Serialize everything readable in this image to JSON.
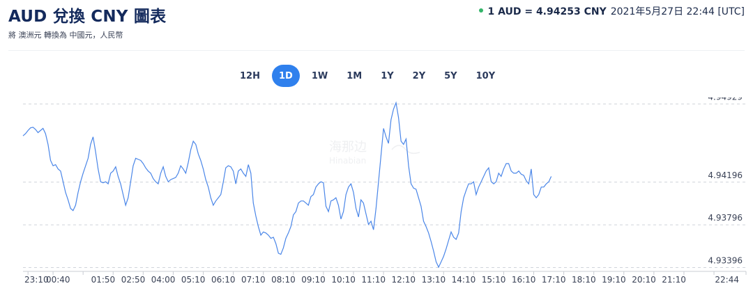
{
  "header": {
    "title": "AUD 兌換 CNY 圖表",
    "subtitle": "將 澳洲元 轉換為 中國元，人民幣",
    "rate_value": "1 AUD = 4.94253 CNY",
    "rate_time": "2021年5月27日 22:44 [UTC]",
    "status_color": "#34b46a"
  },
  "periods": [
    {
      "label": "12H",
      "active": false
    },
    {
      "label": "1D",
      "active": true
    },
    {
      "label": "1W",
      "active": false
    },
    {
      "label": "1M",
      "active": false
    },
    {
      "label": "1Y",
      "active": false
    },
    {
      "label": "2Y",
      "active": false
    },
    {
      "label": "5Y",
      "active": false
    },
    {
      "label": "10Y",
      "active": false
    }
  ],
  "chart_data": {
    "type": "line",
    "series_color": "#4a86e8",
    "accent_color": "#2f80ed",
    "grid": true,
    "y_grid_lines": [
      4.94929,
      4.94196,
      4.93796,
      4.93396
    ],
    "y_tick_labels": [
      "4.94929",
      "4.94196",
      "4.93796",
      "4.93396"
    ],
    "ylim": [
      4.9336,
      4.9499
    ],
    "xlim": [
      0,
      1444
    ],
    "x_tick_positions": [
      10,
      60,
      120,
      180,
      240,
      300,
      360,
      420,
      480,
      540,
      600,
      660,
      720,
      780,
      840,
      900,
      960,
      1020,
      1080,
      1140,
      1200,
      1260,
      1320,
      1380,
      1444
    ],
    "x_tick_labels": [
      "23:10",
      "00:40",
      "01:50",
      "02:50",
      "04:00",
      "05:10",
      "06:10",
      "07:10",
      "08:10",
      "09:10",
      "10:10",
      "11:10",
      "12:10",
      "13:10",
      "14:10",
      "15:10",
      "16:10",
      "17:10",
      "18:10",
      "19:10",
      "20:10",
      "21:10",
      "22:44"
    ],
    "x_tick_label_positions": [
      10,
      70,
      160,
      220,
      280,
      340,
      400,
      460,
      520,
      580,
      640,
      700,
      760,
      820,
      880,
      940,
      1000,
      1060,
      1120,
      1180,
      1240,
      1300,
      1444
    ],
    "series": [
      {
        "points": [
          [
            0,
            4.9463
          ],
          [
            5,
            4.9465
          ],
          [
            10,
            4.9468
          ],
          [
            15,
            4.94705
          ],
          [
            20,
            4.9471
          ],
          [
            25,
            4.9469
          ],
          [
            30,
            4.9466
          ],
          [
            35,
            4.9468
          ],
          [
            40,
            4.947
          ],
          [
            45,
            4.9465
          ],
          [
            50,
            4.9455
          ],
          [
            55,
            4.944
          ],
          [
            60,
            4.9435
          ],
          [
            65,
            4.9436
          ],
          [
            70,
            4.9432
          ],
          [
            75,
            4.943
          ],
          [
            80,
            4.942
          ],
          [
            85,
            4.941
          ],
          [
            90,
            4.9403
          ],
          [
            95,
            4.9395
          ],
          [
            100,
            4.9393
          ],
          [
            105,
            4.9398
          ],
          [
            110,
            4.941
          ],
          [
            115,
            4.942
          ],
          [
            120,
            4.9428
          ],
          [
            125,
            4.9435
          ],
          [
            130,
            4.9442
          ],
          [
            135,
            4.9455
          ],
          [
            140,
            4.9462
          ],
          [
            145,
            4.9448
          ],
          [
            150,
            4.9432
          ],
          [
            155,
            4.942
          ],
          [
            160,
            4.9419
          ],
          [
            165,
            4.942
          ],
          [
            170,
            4.9418
          ],
          [
            175,
            4.9428
          ],
          [
            180,
            4.943
          ],
          [
            185,
            4.9434
          ],
          [
            190,
            4.9425
          ],
          [
            195,
            4.9418
          ],
          [
            200,
            4.9408
          ],
          [
            205,
            4.9398
          ],
          [
            210,
            4.9405
          ],
          [
            215,
            4.942
          ],
          [
            220,
            4.9435
          ],
          [
            225,
            4.9442
          ],
          [
            230,
            4.9441
          ],
          [
            235,
            4.944
          ],
          [
            240,
            4.9437
          ],
          [
            245,
            4.9433
          ],
          [
            250,
            4.943
          ],
          [
            255,
            4.9428
          ],
          [
            260,
            4.9423
          ],
          [
            265,
            4.942
          ],
          [
            270,
            4.9418
          ],
          [
            275,
            4.9428
          ],
          [
            280,
            4.9434
          ],
          [
            285,
            4.9425
          ],
          [
            290,
            4.942
          ],
          [
            295,
            4.9422
          ],
          [
            300,
            4.9423
          ],
          [
            305,
            4.9424
          ],
          [
            310,
            4.9428
          ],
          [
            315,
            4.9435
          ],
          [
            320,
            4.9432
          ],
          [
            325,
            4.9428
          ],
          [
            330,
            4.9438
          ],
          [
            335,
            4.945
          ],
          [
            340,
            4.9458
          ],
          [
            345,
            4.9455
          ],
          [
            350,
            4.9446
          ],
          [
            355,
            4.944
          ],
          [
            360,
            4.9432
          ],
          [
            365,
            4.9422
          ],
          [
            370,
            4.9415
          ],
          [
            375,
            4.9405
          ],
          [
            380,
            4.9398
          ],
          [
            385,
            4.9402
          ],
          [
            390,
            4.9405
          ],
          [
            395,
            4.9408
          ],
          [
            400,
            4.942
          ],
          [
            405,
            4.9433
          ],
          [
            410,
            4.9435
          ],
          [
            415,
            4.9434
          ],
          [
            420,
            4.943
          ],
          [
            425,
            4.9418
          ],
          [
            430,
            4.943
          ],
          [
            435,
            4.9432
          ],
          [
            440,
            4.9428
          ],
          [
            445,
            4.9425
          ],
          [
            450,
            4.9436
          ],
          [
            455,
            4.9428
          ],
          [
            460,
            4.94
          ],
          [
            465,
            4.9388
          ],
          [
            470,
            4.9378
          ],
          [
            475,
            4.937
          ],
          [
            480,
            4.9373
          ],
          [
            485,
            4.9372
          ],
          [
            490,
            4.937
          ],
          [
            495,
            4.9367
          ],
          [
            500,
            4.9368
          ],
          [
            505,
            4.9362
          ],
          [
            510,
            4.9353
          ],
          [
            515,
            4.9352
          ],
          [
            520,
            4.9358
          ],
          [
            525,
            4.9367
          ],
          [
            530,
            4.9372
          ],
          [
            535,
            4.9378
          ],
          [
            540,
            4.9389
          ],
          [
            545,
            4.9392
          ],
          [
            550,
            4.94
          ],
          [
            555,
            4.9402
          ],
          [
            560,
            4.9402
          ],
          [
            565,
            4.94
          ],
          [
            570,
            4.9398
          ],
          [
            575,
            4.9406
          ],
          [
            580,
            4.9408
          ],
          [
            585,
            4.9415
          ],
          [
            590,
            4.9418
          ],
          [
            595,
            4.942
          ],
          [
            600,
            4.9419
          ],
          [
            605,
            4.9397
          ],
          [
            610,
            4.9392
          ],
          [
            615,
            4.9402
          ],
          [
            620,
            4.9403
          ],
          [
            625,
            4.9405
          ],
          [
            630,
            4.9398
          ],
          [
            635,
            4.9385
          ],
          [
            640,
            4.9392
          ],
          [
            645,
            4.9408
          ],
          [
            650,
            4.9415
          ],
          [
            655,
            4.9418
          ],
          [
            660,
            4.941
          ],
          [
            665,
            4.9395
          ],
          [
            670,
            4.9387
          ],
          [
            675,
            4.9403
          ],
          [
            680,
            4.94
          ],
          [
            685,
            4.939
          ],
          [
            690,
            4.938
          ],
          [
            695,
            4.9383
          ],
          [
            700,
            4.9375
          ],
          [
            705,
            4.9395
          ],
          [
            710,
            4.942
          ],
          [
            715,
            4.9445
          ],
          [
            720,
            4.947
          ],
          [
            725,
            4.9462
          ],
          [
            730,
            4.9456
          ],
          [
            735,
            4.9478
          ],
          [
            740,
            4.9488
          ],
          [
            745,
            4.9494
          ],
          [
            750,
            4.948
          ],
          [
            755,
            4.9458
          ],
          [
            760,
            4.9455
          ],
          [
            765,
            4.946
          ],
          [
            770,
            4.9435
          ],
          [
            775,
            4.9418
          ],
          [
            780,
            4.9414
          ],
          [
            785,
            4.9413
          ],
          [
            790,
            4.9405
          ],
          [
            795,
            4.9397
          ],
          [
            800,
            4.9383
          ],
          [
            805,
            4.9378
          ],
          [
            810,
            4.9372
          ],
          [
            815,
            4.9364
          ],
          [
            820,
            4.9355
          ],
          [
            825,
            4.9345
          ],
          [
            830,
            4.934
          ],
          [
            835,
            4.9345
          ],
          [
            840,
            4.935
          ],
          [
            845,
            4.9357
          ],
          [
            850,
            4.9365
          ],
          [
            855,
            4.9373
          ],
          [
            860,
            4.9368
          ],
          [
            865,
            4.9366
          ],
          [
            870,
            4.9372
          ],
          [
            875,
            4.9392
          ],
          [
            880,
            4.9405
          ],
          [
            885,
            4.9412
          ],
          [
            890,
            4.9418
          ],
          [
            895,
            4.9418
          ],
          [
            900,
            4.942
          ],
          [
            905,
            4.9408
          ],
          [
            910,
            4.9415
          ],
          [
            915,
            4.942
          ],
          [
            920,
            4.9425
          ],
          [
            925,
            4.943
          ],
          [
            930,
            4.9433
          ],
          [
            935,
            4.942
          ],
          [
            940,
            4.9418
          ],
          [
            945,
            4.942
          ],
          [
            950,
            4.9428
          ],
          [
            955,
            4.9425
          ],
          [
            960,
            4.9432
          ],
          [
            965,
            4.9437
          ],
          [
            970,
            4.9437
          ],
          [
            975,
            4.943
          ],
          [
            980,
            4.9428
          ],
          [
            985,
            4.9428
          ],
          [
            990,
            4.943
          ],
          [
            995,
            4.9427
          ],
          [
            1000,
            4.9426
          ],
          [
            1005,
            4.9421
          ],
          [
            1010,
            4.9418
          ],
          [
            1015,
            4.9432
          ],
          [
            1020,
            4.9408
          ],
          [
            1025,
            4.9405
          ],
          [
            1030,
            4.9408
          ],
          [
            1035,
            4.9415
          ],
          [
            1040,
            4.9415
          ],
          [
            1045,
            4.9418
          ],
          [
            1050,
            4.942
          ],
          [
            1055,
            4.9425
          ]
        ]
      }
    ]
  },
  "watermark": {
    "line1": "海那边",
    "line2": "Hinabian"
  }
}
